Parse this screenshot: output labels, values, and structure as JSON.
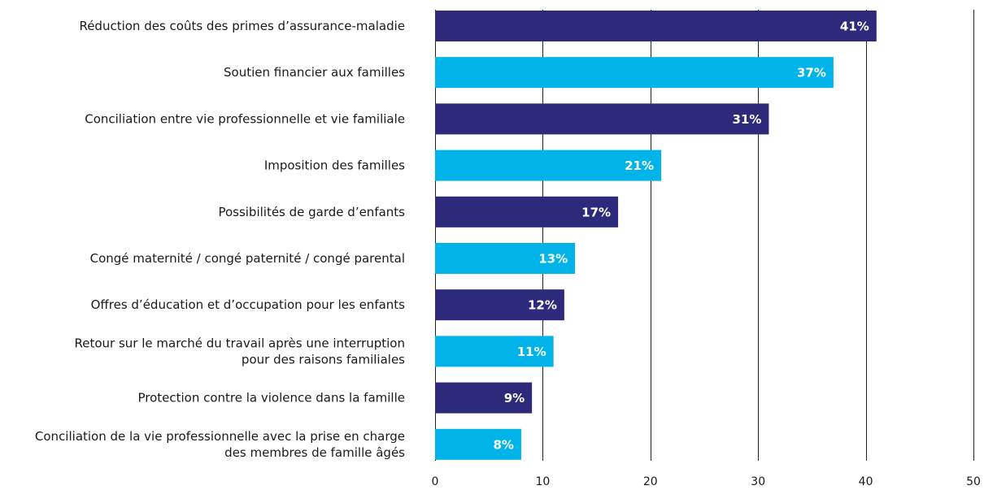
{
  "chart_data": {
    "type": "bar",
    "orientation": "horizontal",
    "categories": [
      [
        "Réduction des coûts des primes d’assurance-maladie"
      ],
      [
        "Soutien financier aux familles"
      ],
      [
        "Conciliation entre vie professionnelle et vie familiale"
      ],
      [
        "Imposition des familles"
      ],
      [
        "Possibilités de garde d’enfants"
      ],
      [
        "Congé maternité / congé paternité / congé parental"
      ],
      [
        "Offres d’éducation et d’occupation pour les enfants"
      ],
      [
        "Retour sur le marché du travail après une interruption",
        "pour des raisons familiales"
      ],
      [
        "Protection contre la violence dans la famille"
      ],
      [
        "Conciliation de la vie professionnelle avec la prise en charge",
        "des membres de famille âgés"
      ]
    ],
    "values": [
      41,
      37,
      31,
      21,
      17,
      13,
      12,
      11,
      9,
      8
    ],
    "value_labels": [
      "41%",
      "37%",
      "31%",
      "21%",
      "17%",
      "13%",
      "12%",
      "11%",
      "9%",
      "8%"
    ],
    "xlim": [
      0,
      50
    ],
    "xticks": [
      0,
      10,
      20,
      30,
      40,
      50
    ],
    "grid": true,
    "colors": [
      "#2e2a7b",
      "#00b4ea"
    ],
    "title": "",
    "xlabel": "",
    "ylabel": ""
  }
}
